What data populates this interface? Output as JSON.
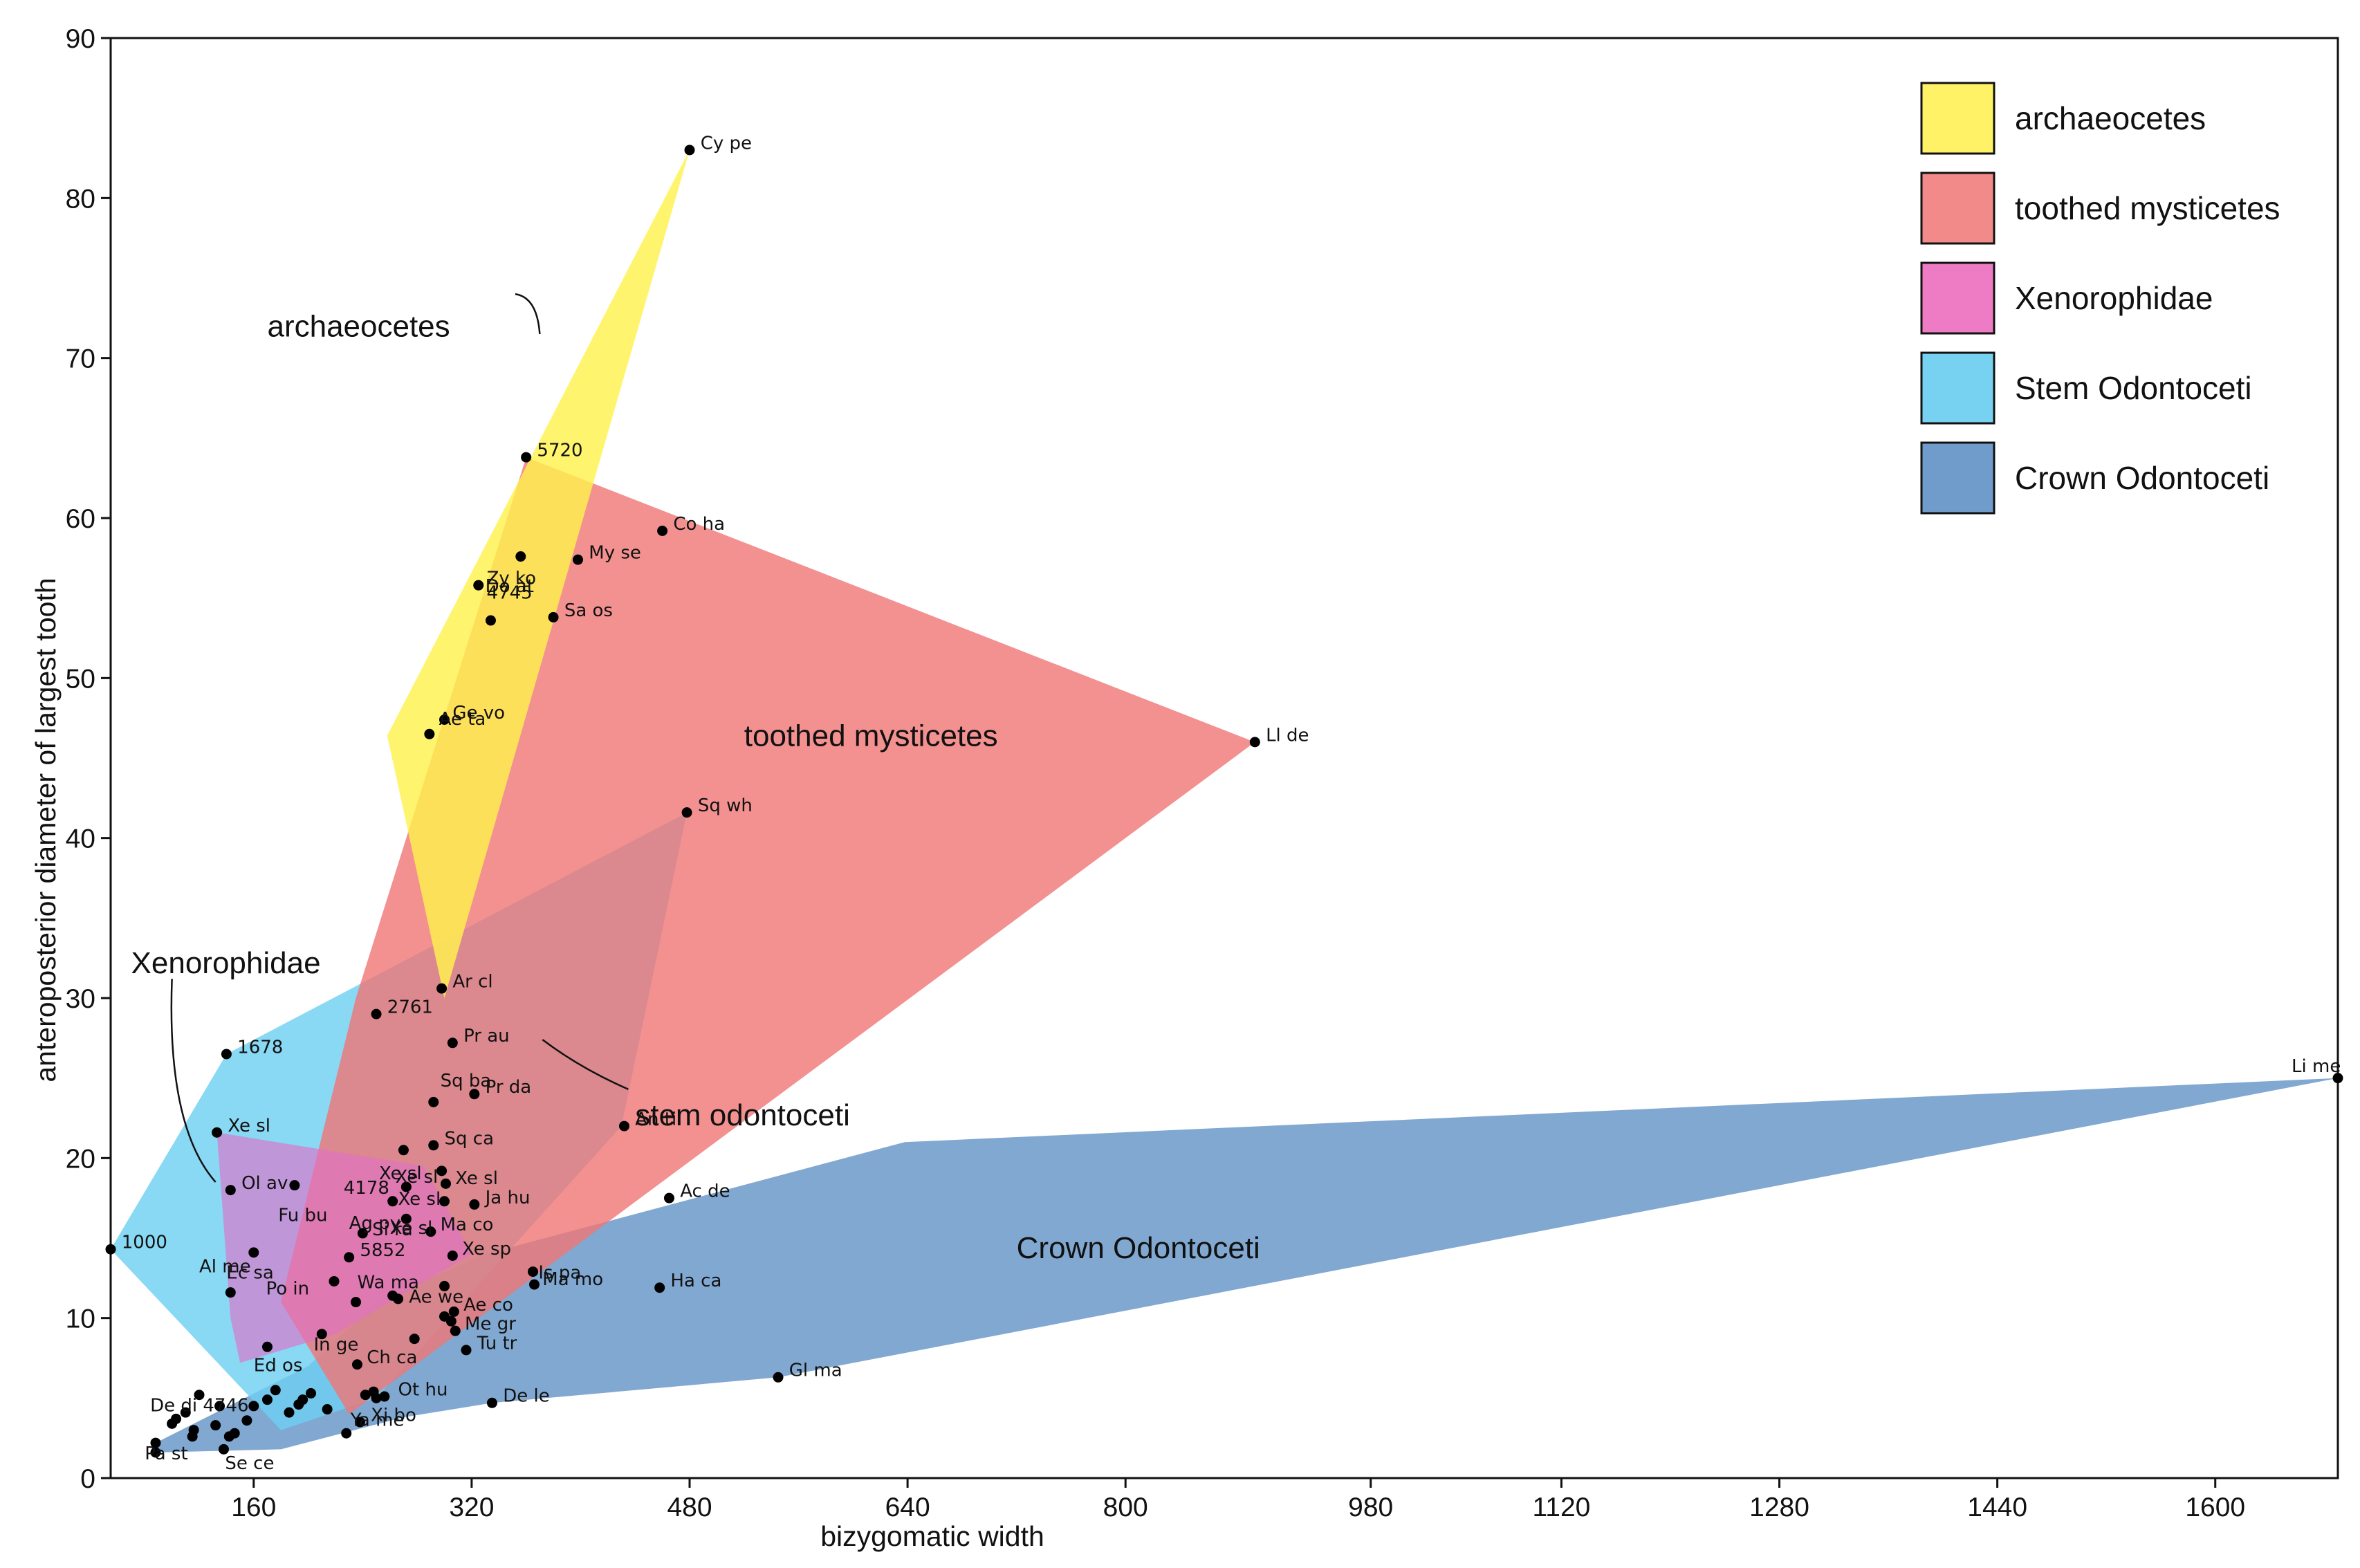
{
  "chart_data": {
    "type": "scatter",
    "xlabel": "bizygomatic width",
    "ylabel": "anteroposterior diameter of largest tooth",
    "xlim": [
      55,
      1690
    ],
    "ylim": [
      0,
      90
    ],
    "xticks": [
      160,
      320,
      480,
      640,
      800,
      980,
      1120,
      1280,
      1440,
      1600
    ],
    "yticks": [
      0,
      10,
      20,
      30,
      40,
      50,
      60,
      70,
      80,
      90
    ],
    "legend_position": "top-right",
    "legend": [
      {
        "label": "archaeocetes",
        "color": "#fff266"
      },
      {
        "label": "toothed mysticetes",
        "color": "#f28a8a"
      },
      {
        "label": "Xenorophidae",
        "color": "#ee7cc4"
      },
      {
        "label": "Stem Odontoceti",
        "color": "#77d2f2"
      },
      {
        "label": "Crown Odontoceti",
        "color": "#6f9ccb"
      }
    ],
    "hulls": [
      {
        "name": "Crown Odontoceti",
        "color": "#6f9ccb",
        "opacity": 0.88,
        "points": [
          [
            88,
            1.6
          ],
          [
            88,
            2.2
          ],
          [
            200,
            7
          ],
          [
            250,
            11
          ],
          [
            330,
            14
          ],
          [
            638,
            21
          ],
          [
            1690,
            25
          ],
          [
            545,
            6.3
          ],
          [
            335,
            4.7
          ],
          [
            270,
            3.8
          ],
          [
            180,
            1.8
          ]
        ]
      },
      {
        "name": "Stem Odontoceti",
        "color": "#6fd0f2",
        "opacity": 0.82,
        "points": [
          [
            55,
            14.3
          ],
          [
            140,
            26.5
          ],
          [
            478,
            41.6
          ],
          [
            430,
            22
          ],
          [
            250,
            5
          ],
          [
            180,
            3
          ]
        ]
      },
      {
        "name": "toothed mysticetes",
        "color": "#f07676",
        "opacity": 0.8,
        "points": [
          [
            360,
            63.8
          ],
          [
            895,
            46
          ],
          [
            230,
            4
          ],
          [
            180,
            11
          ],
          [
            235,
            30
          ]
        ]
      },
      {
        "name": "Xenorophidae",
        "color": "#e070c8",
        "opacity": 0.62,
        "points": [
          [
            133,
            21.6
          ],
          [
            285,
            19.5
          ],
          [
            320,
            14
          ],
          [
            220,
            9
          ],
          [
            150,
            7.2
          ],
          [
            143,
            10
          ]
        ]
      },
      {
        "name": "archaeocetes",
        "color": "#fff24e",
        "opacity": 0.82,
        "points": [
          [
            480,
            83
          ],
          [
            300,
            30
          ],
          [
            258,
            46.4
          ]
        ]
      }
    ],
    "points": [
      {
        "label": "Cy pe",
        "x": 480,
        "y": 83,
        "dx": 8,
        "dy": 0.5
      },
      {
        "label": "5720",
        "x": 360,
        "y": 63.8,
        "dx": 8,
        "dy": 0.5
      },
      {
        "label": "Do at",
        "x": 356,
        "y": 57.6,
        "dx": -26,
        "dy": -1.8
      },
      {
        "label": "Co ha",
        "x": 460,
        "y": 59.2,
        "dx": 8,
        "dy": 0.5
      },
      {
        "label": "My se",
        "x": 398,
        "y": 57.4,
        "dx": 8,
        "dy": 0.5
      },
      {
        "label": "Zy ko",
        "x": 325,
        "y": 55.8,
        "dx": 6,
        "dy": 0.5
      },
      {
        "label": "4745",
        "x": 334,
        "y": 53.6,
        "dx": -3,
        "dy": 1.8
      },
      {
        "label": "Sa os",
        "x": 380,
        "y": 53.8,
        "dx": 8,
        "dy": 0.5
      },
      {
        "label": "Ge vo",
        "x": 300,
        "y": 47.4,
        "dx": 6,
        "dy": 0.5
      },
      {
        "label": "Ae ta",
        "x": 289,
        "y": 46.5,
        "dx": 7,
        "dy": 1.0
      },
      {
        "label": "Ll de",
        "x": 895,
        "y": 46,
        "dx": 8,
        "dy": 0.5
      },
      {
        "label": "Sq wh",
        "x": 478,
        "y": 41.6,
        "dx": 8,
        "dy": 0.5
      },
      {
        "label": "Ar cl",
        "x": 298,
        "y": 30.6,
        "dx": 8,
        "dy": 0.5
      },
      {
        "label": "2761",
        "x": 250,
        "y": 29,
        "dx": 8,
        "dy": 0.5
      },
      {
        "label": "1678",
        "x": 140,
        "y": 26.5,
        "dx": 8,
        "dy": 0.5
      },
      {
        "label": "Pr au",
        "x": 306,
        "y": 27.2,
        "dx": 8,
        "dy": 0.5
      },
      {
        "label": "Pr da",
        "x": 322,
        "y": 24.0,
        "dx": 8,
        "dy": 0.5
      },
      {
        "label": "Sq ba",
        "x": 292,
        "y": 23.5,
        "dx": 5,
        "dy": 1.4
      },
      {
        "label": "An ti",
        "x": 432,
        "y": 22,
        "dx": 8,
        "dy": 0.5
      },
      {
        "label": "Xe sl",
        "x": 133,
        "y": 21.6,
        "dx": 8,
        "dy": 0.5
      },
      {
        "label": "Xe sl",
        "x": 270,
        "y": 20.5,
        "dx": -18,
        "dy": -1.4
      },
      {
        "label": "Sq ca",
        "x": 292,
        "y": 20.8,
        "dx": 8,
        "dy": 0.5
      },
      {
        "label": "Xe sl",
        "x": 298,
        "y": 19.2,
        "dx": -34,
        "dy": -0.3
      },
      {
        "label": "Fu bu",
        "x": 190,
        "y": 18.3,
        "dx": -12,
        "dy": -1.8
      },
      {
        "label": "Xe sl",
        "x": 301,
        "y": 18.4,
        "dx": 7,
        "dy": 0.4
      },
      {
        "label": "Ol av",
        "x": 143,
        "y": 18.0,
        "dx": 8,
        "dy": 0.5
      },
      {
        "label": "4178",
        "x": 272,
        "y": 18.2,
        "dx": -46,
        "dy": 0.0
      },
      {
        "label": "Xe sl",
        "x": 300,
        "y": 17.3,
        "dx": -34,
        "dy": 0.2
      },
      {
        "label": "Ja hu",
        "x": 322,
        "y": 17.1,
        "dx": 8,
        "dy": 0.5
      },
      {
        "label": "Xe sl",
        "x": 262,
        "y": 17.3,
        "dx": -2,
        "dy": -1.6
      },
      {
        "label": "Ac de",
        "x": 465,
        "y": 17.5,
        "dx": 8,
        "dy": 0.5
      },
      {
        "label": "Ag py",
        "x": 272,
        "y": 16.2,
        "dx": -42,
        "dy": -0.2
      },
      {
        "label": "Si ra",
        "x": 240,
        "y": 15.3,
        "dx": 7,
        "dy": 0.3
      },
      {
        "label": "Ma co",
        "x": 290,
        "y": 15.4,
        "dx": 7,
        "dy": 0.5
      },
      {
        "label": "1000",
        "x": 55,
        "y": 14.3,
        "dx": 8,
        "dy": 0.5
      },
      {
        "label": "Al me",
        "x": 160,
        "y": 14.1,
        "dx": -40,
        "dy": -0.8
      },
      {
        "label": "5852",
        "x": 230,
        "y": 13.8,
        "dx": 8,
        "dy": 0.5
      },
      {
        "label": "Xe sp",
        "x": 306,
        "y": 13.9,
        "dx": 7,
        "dy": 0.5
      },
      {
        "label": "Ma mo",
        "x": 365,
        "y": 12.9,
        "dx": 7,
        "dy": -0.4
      },
      {
        "label": "Is pa",
        "x": 366,
        "y": 12.1,
        "dx": 3,
        "dy": 0.8
      },
      {
        "label": "Po in",
        "x": 219,
        "y": 12.3,
        "dx": -50,
        "dy": -0.4
      },
      {
        "label": "Ae we",
        "x": 300,
        "y": 12.0,
        "dx": -26,
        "dy": -0.6
      },
      {
        "label": "Ha ca",
        "x": 458,
        "y": 11.9,
        "dx": 8,
        "dy": 0.5
      },
      {
        "label": "Ec sa",
        "x": 143,
        "y": 11.6,
        "dx": -3,
        "dy": 1.3
      },
      {
        "label": "Wa ma",
        "x": 235,
        "y": 11.0,
        "dx": 1,
        "dy": 1.3
      },
      {
        "label": "Ae co",
        "x": 307,
        "y": 10.4,
        "dx": 7,
        "dy": 0.5
      },
      {
        "label": "Me gr",
        "x": 308,
        "y": 9.2,
        "dx": 7,
        "dy": 0.5
      },
      {
        "label": "Ed os",
        "x": 170,
        "y": 8.2,
        "dx": -10,
        "dy": -1.1
      },
      {
        "label": "In ge",
        "x": 210,
        "y": 9.0,
        "dx": -6,
        "dy": -0.6
      },
      {
        "label": "Tu tr",
        "x": 316,
        "y": 8.0,
        "dx": 8,
        "dy": 0.5
      },
      {
        "label": "Ch ca",
        "x": 236,
        "y": 7.1,
        "dx": 7,
        "dy": 0.5
      },
      {
        "label": "Gl ma",
        "x": 545,
        "y": 6.3,
        "dx": 8,
        "dy": 0.5
      },
      {
        "label": "De di 4746",
        "x": 120,
        "y": 5.2,
        "dx": -36,
        "dy": -0.6
      },
      {
        "label": "Ot hu",
        "x": 256,
        "y": 5.1,
        "dx": 10,
        "dy": 0.5
      },
      {
        "label": "De le",
        "x": 335,
        "y": 4.7,
        "dx": 8,
        "dy": 0.5
      },
      {
        "label": "Xi bo",
        "x": 238,
        "y": 3.5,
        "dx": 8,
        "dy": 0.5
      },
      {
        "label": "Ya me",
        "x": 228,
        "y": 2.8,
        "dx": 3,
        "dy": 0.9
      },
      {
        "label": "Pa st",
        "x": 88,
        "y": 2.2,
        "dx": -8,
        "dy": -0.6
      },
      {
        "label": "Se ce",
        "x": 138,
        "y": 1.8,
        "dx": 1,
        "dy": -0.8
      },
      {
        "label": "",
        "x": 88,
        "y": 1.6
      },
      {
        "label": "Li me",
        "x": 1690,
        "y": 25,
        "dx": -34,
        "dy": 0.8
      },
      {
        "label": "",
        "x": 100,
        "y": 3.4
      },
      {
        "label": "",
        "x": 103,
        "y": 3.7
      },
      {
        "label": "",
        "x": 110,
        "y": 4.1
      },
      {
        "label": "",
        "x": 115,
        "y": 2.6
      },
      {
        "label": "",
        "x": 116,
        "y": 3.0
      },
      {
        "label": "",
        "x": 132,
        "y": 3.3
      },
      {
        "label": "",
        "x": 135,
        "y": 4.5
      },
      {
        "label": "",
        "x": 142,
        "y": 2.6
      },
      {
        "label": "",
        "x": 146,
        "y": 2.8
      },
      {
        "label": "",
        "x": 155,
        "y": 3.6
      },
      {
        "label": "",
        "x": 160,
        "y": 4.5
      },
      {
        "label": "",
        "x": 170,
        "y": 4.9
      },
      {
        "label": "",
        "x": 176,
        "y": 5.5
      },
      {
        "label": "",
        "x": 186,
        "y": 4.1
      },
      {
        "label": "",
        "x": 193,
        "y": 4.6
      },
      {
        "label": "",
        "x": 196,
        "y": 4.9
      },
      {
        "label": "",
        "x": 202,
        "y": 5.3
      },
      {
        "label": "",
        "x": 214,
        "y": 4.3
      },
      {
        "label": "",
        "x": 242,
        "y": 5.2
      },
      {
        "label": "",
        "x": 248,
        "y": 5.4
      },
      {
        "label": "",
        "x": 250,
        "y": 5.0
      },
      {
        "label": "",
        "x": 262,
        "y": 11.4
      },
      {
        "label": "",
        "x": 266,
        "y": 11.2
      },
      {
        "label": "",
        "x": 300,
        "y": 10.1
      },
      {
        "label": "",
        "x": 305,
        "y": 9.8
      },
      {
        "label": "",
        "x": 278,
        "y": 8.7
      }
    ],
    "annotations": [
      {
        "text": "archaeocetes",
        "x": 170,
        "y": 72,
        "anchor": [
          370,
          71.5
        ],
        "path": [
          [
            352,
            74
          ],
          [
            368,
            73.8
          ],
          [
            370,
            71.5
          ]
        ]
      },
      {
        "text": "toothed mysticetes",
        "x": 520,
        "y": 46.4
      },
      {
        "text": "Xenorophidae",
        "x": 70,
        "y": 32.2,
        "anchor": [
          132,
          18.5
        ],
        "path": [
          [
            100,
            31.2
          ],
          [
            96,
            22
          ],
          [
            132,
            18.5
          ]
        ]
      },
      {
        "text": "stem odontoceti",
        "x": 440,
        "y": 22.7,
        "anchor": [
          372,
          27.4
        ],
        "path": [
          [
            435,
            24.3
          ],
          [
            400,
            25.6
          ],
          [
            372,
            27.4
          ]
        ]
      },
      {
        "text": "Crown Odontoceti",
        "x": 720,
        "y": 14.4
      }
    ]
  },
  "annotation_texts": {
    "archaeocetes": "archaeocetes",
    "toothed_mysticetes": "toothed mysticetes",
    "xenorophidae": "Xenorophidae",
    "stem": "stem odontoceti",
    "crown": "Crown Odontoceti"
  }
}
